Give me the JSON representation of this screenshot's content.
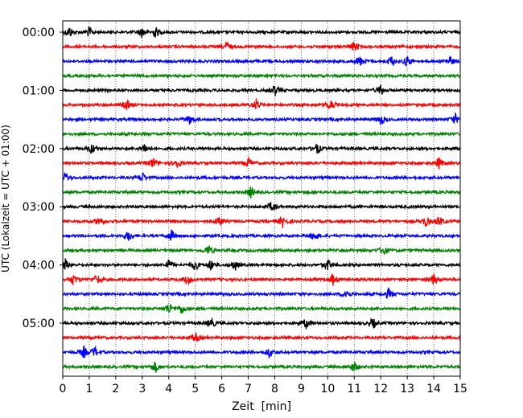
{
  "chart_data": {
    "type": "line",
    "title": "",
    "xlabel": "Zeit  [min]",
    "ylabel": "UTC (Lokalzeit = UTC + 01:00)",
    "xlim": [
      0,
      15
    ],
    "x_ticks": [
      "0",
      "1",
      "2",
      "3",
      "4",
      "5",
      "6",
      "7",
      "8",
      "9",
      "10",
      "11",
      "12",
      "13",
      "14",
      "15"
    ],
    "y_ticks": [
      "00:00",
      "01:00",
      "02:00",
      "03:00",
      "04:00",
      "05:00"
    ],
    "x_grid": "dotted vertical lines at each minute",
    "row_minutes": 15,
    "row_colors": [
      "#000000",
      "#ff0000",
      "#0000ff",
      "#008000"
    ],
    "traces": [
      {
        "start": "00:00",
        "color": "#000000",
        "events": [
          0.25,
          1.0,
          3.0,
          3.5
        ]
      },
      {
        "start": "00:15",
        "color": "#ff0000",
        "events": [
          6.2,
          11.0
        ]
      },
      {
        "start": "00:30",
        "color": "#0000ff",
        "events": [
          11.2,
          12.4,
          13.0,
          14.6
        ]
      },
      {
        "start": "00:45",
        "color": "#008000",
        "events": []
      },
      {
        "start": "01:00",
        "color": "#000000",
        "events": [
          8.0,
          12.0
        ]
      },
      {
        "start": "01:15",
        "color": "#ff0000",
        "events": [
          2.4,
          7.3,
          10.1
        ]
      },
      {
        "start": "01:30",
        "color": "#0000ff",
        "events": [
          4.8,
          12.0,
          14.8
        ]
      },
      {
        "start": "01:45",
        "color": "#008000",
        "events": []
      },
      {
        "start": "02:00",
        "color": "#000000",
        "events": [
          1.1,
          3.1,
          9.6
        ]
      },
      {
        "start": "02:15",
        "color": "#ff0000",
        "events": [
          3.4,
          4.3,
          7.0,
          14.2
        ]
      },
      {
        "start": "02:30",
        "color": "#0000ff",
        "events": [
          0.1,
          3.0
        ]
      },
      {
        "start": "02:45",
        "color": "#008000",
        "events": [
          7.1
        ]
      },
      {
        "start": "03:00",
        "color": "#000000",
        "events": [
          7.9
        ]
      },
      {
        "start": "03:15",
        "color": "#ff0000",
        "events": [
          1.4,
          5.9,
          8.3,
          13.7,
          14.2
        ]
      },
      {
        "start": "03:30",
        "color": "#0000ff",
        "events": [
          2.5,
          4.1,
          9.5
        ]
      },
      {
        "start": "03:45",
        "color": "#008000",
        "events": [
          5.5,
          12.1
        ]
      },
      {
        "start": "04:00",
        "color": "#000000",
        "events": [
          0.1,
          4.0,
          5.0,
          5.6,
          6.5,
          10.0
        ]
      },
      {
        "start": "04:15",
        "color": "#ff0000",
        "events": [
          0.4,
          1.3,
          4.7,
          10.2,
          14.0
        ]
      },
      {
        "start": "04:30",
        "color": "#0000ff",
        "events": [
          10.7,
          12.3
        ]
      },
      {
        "start": "04:45",
        "color": "#008000",
        "events": [
          4.0,
          4.5
        ]
      },
      {
        "start": "05:00",
        "color": "#000000",
        "events": [
          5.6,
          9.2,
          11.7
        ]
      },
      {
        "start": "05:15",
        "color": "#ff0000",
        "events": [
          5.0
        ]
      },
      {
        "start": "05:30",
        "color": "#0000ff",
        "events": [
          0.8,
          1.2,
          7.8
        ]
      },
      {
        "start": "05:45",
        "color": "#008000",
        "events": [
          3.5,
          11.0
        ]
      }
    ]
  }
}
